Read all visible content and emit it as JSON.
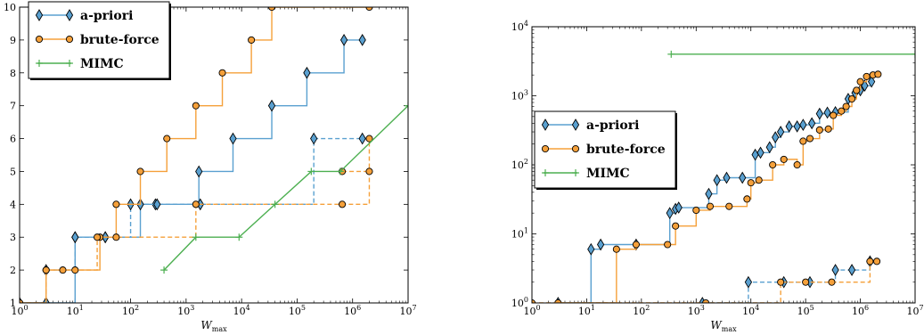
{
  "colors": {
    "apriori": "#5aa0d0",
    "brute": "#f5a03a",
    "mimc": "#4caf50"
  },
  "chart_data": [
    {
      "type": "line",
      "xlabel": "W",
      "xlabel_sub": "max",
      "ylabel": "",
      "xscale": "log",
      "xlim": [
        1,
        10000000
      ],
      "ylim": [
        1,
        10
      ],
      "xticks": [
        {
          "v": 1,
          "base": "10",
          "exp": "0"
        },
        {
          "v": 10,
          "base": "10",
          "exp": "1"
        },
        {
          "v": 100,
          "base": "10",
          "exp": "2"
        },
        {
          "v": 1000,
          "base": "10",
          "exp": "3"
        },
        {
          "v": 10000,
          "base": "10",
          "exp": "4"
        },
        {
          "v": 100000,
          "base": "10",
          "exp": "5"
        },
        {
          "v": 1000000,
          "base": "10",
          "exp": "6"
        },
        {
          "v": 10000000,
          "base": "10",
          "exp": "7"
        }
      ],
      "yticks": [
        {
          "v": 1,
          "label": "1"
        },
        {
          "v": 2,
          "label": "2"
        },
        {
          "v": 3,
          "label": "3"
        },
        {
          "v": 4,
          "label": "4"
        },
        {
          "v": 5,
          "label": "5"
        },
        {
          "v": 6,
          "label": "6"
        },
        {
          "v": 7,
          "label": "7"
        },
        {
          "v": 8,
          "label": "8"
        },
        {
          "v": 9,
          "label": "9"
        },
        {
          "v": 10,
          "label": "10"
        }
      ],
      "legend_position": "top-left",
      "legend": [
        "a-priori",
        "brute-force",
        "MIMC"
      ],
      "series": [
        {
          "name": "a-priori",
          "style": "solid",
          "marker": "diamond",
          "x": [
            1,
            3,
            10,
            35,
            150,
            280,
            1700,
            7000,
            35000,
            150000,
            700000,
            1500000
          ],
          "y": [
            1,
            1,
            3,
            3,
            4,
            4,
            5,
            6,
            7,
            8,
            9,
            9
          ]
        },
        {
          "name": "a-priori",
          "style": "dashed",
          "marker": "diamond",
          "x": [
            3,
            10,
            35,
            100,
            300,
            1800,
            200000,
            1500000
          ],
          "y": [
            2,
            3,
            3,
            4,
            4,
            4,
            6,
            6
          ]
        },
        {
          "name": "brute-force",
          "style": "solid",
          "marker": "circle",
          "x": [
            1,
            3,
            10,
            28,
            55,
            150,
            450,
            1500,
            4500,
            15000,
            35000,
            2000000
          ],
          "y": [
            1,
            2,
            2,
            3,
            4,
            5,
            6,
            7,
            8,
            9,
            10,
            10
          ]
        },
        {
          "name": "brute-force",
          "style": "dashed",
          "marker": "circle",
          "x": [
            1,
            3,
            6,
            25,
            55,
            1500,
            650000,
            2000000
          ],
          "y": [
            1,
            2,
            2,
            3,
            3,
            4,
            4,
            6
          ]
        },
        {
          "name": "brute-force",
          "style": "dashed",
          "marker": "circle",
          "x": [
            650000,
            2000000
          ],
          "y": [
            5,
            5
          ]
        },
        {
          "name": "MIMC",
          "style": "solid",
          "marker": "plus",
          "x": [
            400,
            1500,
            9000,
            40000,
            180000,
            600000,
            10000000
          ],
          "y": [
            2,
            3,
            3,
            4,
            5,
            5,
            7
          ]
        }
      ]
    },
    {
      "type": "line",
      "xlabel": "W",
      "xlabel_sub": "max",
      "ylabel": "",
      "xscale": "log",
      "yscale": "log",
      "xlim": [
        1,
        10000000
      ],
      "ylim": [
        1,
        10000
      ],
      "xticks": [
        {
          "v": 1,
          "base": "10",
          "exp": "0"
        },
        {
          "v": 10,
          "base": "10",
          "exp": "1"
        },
        {
          "v": 100,
          "base": "10",
          "exp": "2"
        },
        {
          "v": 1000,
          "base": "10",
          "exp": "3"
        },
        {
          "v": 10000,
          "base": "10",
          "exp": "4"
        },
        {
          "v": 100000,
          "base": "10",
          "exp": "5"
        },
        {
          "v": 1000000,
          "base": "10",
          "exp": "6"
        },
        {
          "v": 10000000,
          "base": "10",
          "exp": "7"
        }
      ],
      "yticks": [
        {
          "v": 1,
          "base": "10",
          "exp": "0"
        },
        {
          "v": 10,
          "base": "10",
          "exp": "1"
        },
        {
          "v": 100,
          "base": "10",
          "exp": "2"
        },
        {
          "v": 1000,
          "base": "10",
          "exp": "3"
        },
        {
          "v": 10000,
          "base": "10",
          "exp": "4"
        }
      ],
      "legend_position": "center-left",
      "legend": [
        "a-priori",
        "brute-force",
        "MIMC"
      ],
      "series": [
        {
          "name": "a-priori",
          "style": "solid",
          "marker": "diamond",
          "x": [
            3,
            12,
            18,
            80,
            330,
            420,
            480,
            1700,
            2400,
            3600,
            7000,
            12000,
            15000,
            22000,
            28000,
            35000,
            50000,
            70000,
            90000,
            130000,
            180000,
            250000,
            350000,
            600000,
            800000,
            1000000,
            1200000,
            1600000
          ],
          "y": [
            1,
            6,
            7,
            7,
            20,
            23,
            24,
            38,
            60,
            65,
            65,
            140,
            150,
            180,
            250,
            300,
            360,
            360,
            380,
            400,
            550,
            570,
            580,
            900,
            1100,
            1200,
            1400,
            1600
          ]
        },
        {
          "name": "a-priori",
          "style": "dashed",
          "marker": "diamond",
          "x": [
            1300,
            9000,
            40000,
            120000,
            350000,
            700000,
            1500000
          ],
          "y": [
            1,
            2,
            2,
            2,
            3,
            3,
            4
          ]
        },
        {
          "name": "brute-force",
          "style": "solid",
          "marker": "circle",
          "x": [
            3,
            35,
            80,
            300,
            420,
            1000,
            1800,
            4000,
            8500,
            10000,
            14000,
            25000,
            40000,
            70000,
            90000,
            120000,
            180000,
            260000,
            320000,
            450000,
            550000,
            700000,
            850000,
            1000000,
            1300000,
            1700000,
            2100000
          ],
          "y": [
            1,
            6,
            7,
            7,
            13,
            22,
            25,
            25,
            32,
            55,
            60,
            100,
            120,
            100,
            220,
            240,
            320,
            330,
            520,
            600,
            700,
            900,
            1200,
            1600,
            1900,
            2000,
            2050
          ]
        },
        {
          "name": "brute-force",
          "style": "dashed",
          "marker": "circle",
          "x": [
            1,
            1500,
            35000,
            100000,
            300000,
            1500000,
            2000000
          ],
          "y": [
            1,
            1,
            2,
            2,
            2,
            4,
            4
          ]
        },
        {
          "name": "MIMC",
          "style": "solid",
          "marker": "plus",
          "x": [
            350,
            10000000
          ],
          "y": [
            4000,
            4000
          ]
        }
      ]
    }
  ]
}
